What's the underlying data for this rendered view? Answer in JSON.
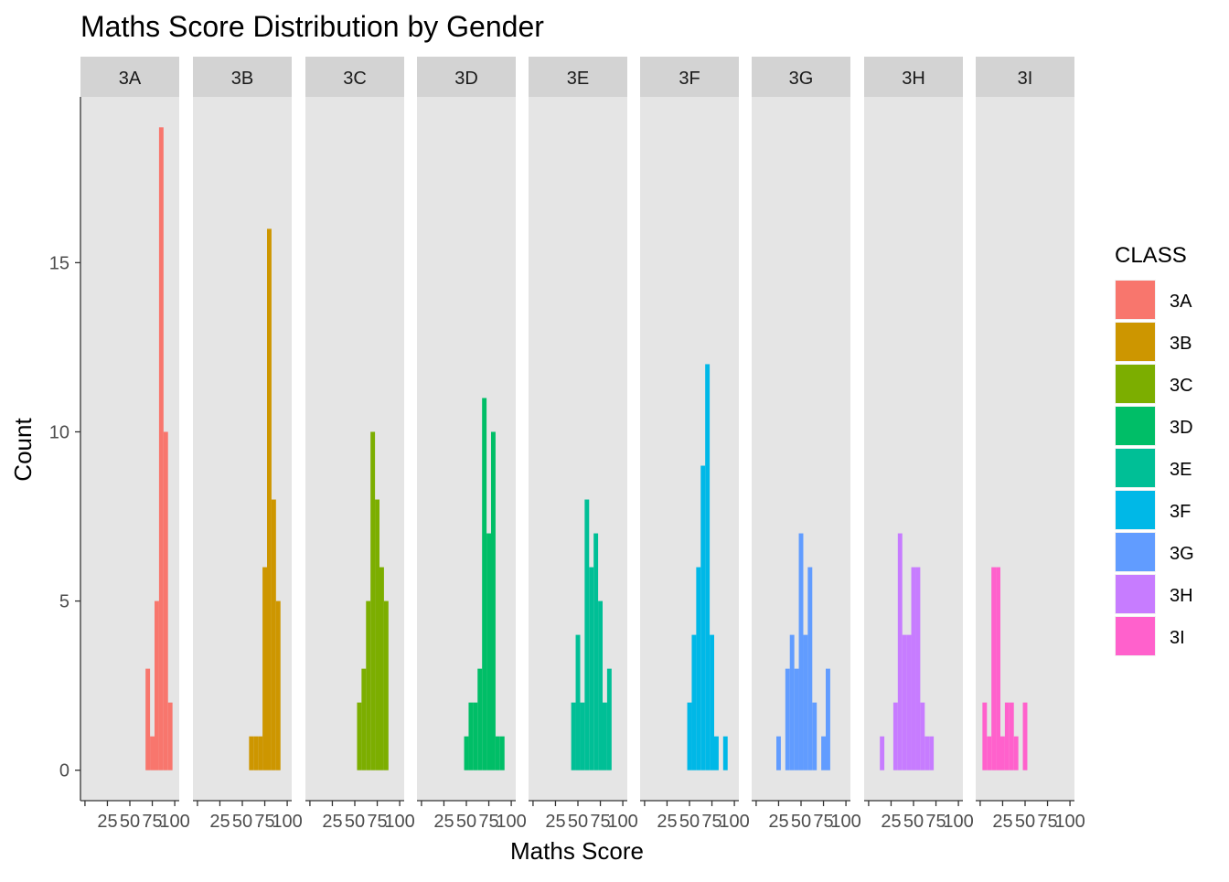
{
  "chart_data": {
    "type": "bar",
    "title": "Maths Score Distribution by Gender",
    "xlabel": "Maths Score",
    "ylabel": "Count",
    "xlim": [
      0,
      100
    ],
    "ylim": [
      -0.9,
      19.9
    ],
    "x_ticks": [
      0,
      25,
      50,
      75,
      100
    ],
    "x_tick_labels": [
      "",
      "25",
      "50",
      "75",
      "100"
    ],
    "y_ticks": [
      0,
      5,
      10,
      15
    ],
    "y_tick_labels": [
      "0",
      "5",
      "10",
      "15"
    ],
    "bin_width": 5,
    "grid": false,
    "legend": {
      "title": "CLASS",
      "placement": "right"
    },
    "panels": [
      {
        "name": "3A",
        "color": "#F8766D",
        "bins": [
          [
            70,
            3
          ],
          [
            75,
            1
          ],
          [
            80,
            5
          ],
          [
            85,
            19
          ],
          [
            90,
            10
          ],
          [
            95,
            2
          ]
        ]
      },
      {
        "name": "3B",
        "color": "#CD9600",
        "bins": [
          [
            60,
            1
          ],
          [
            65,
            1
          ],
          [
            70,
            1
          ],
          [
            75,
            6
          ],
          [
            80,
            16
          ],
          [
            85,
            8
          ],
          [
            90,
            5
          ]
        ]
      },
      {
        "name": "3C",
        "color": "#7CAE00",
        "bins": [
          [
            55,
            2
          ],
          [
            60,
            3
          ],
          [
            65,
            5
          ],
          [
            70,
            10
          ],
          [
            75,
            8
          ],
          [
            80,
            6
          ],
          [
            85,
            5
          ]
        ]
      },
      {
        "name": "3D",
        "color": "#00BE67",
        "bins": [
          [
            50,
            1
          ],
          [
            55,
            2
          ],
          [
            60,
            2
          ],
          [
            65,
            3
          ],
          [
            70,
            11
          ],
          [
            75,
            7
          ],
          [
            80,
            10
          ],
          [
            85,
            1
          ],
          [
            90,
            1
          ]
        ]
      },
      {
        "name": "3E",
        "color": "#00BF96",
        "bins": [
          [
            45,
            2
          ],
          [
            50,
            4
          ],
          [
            55,
            2
          ],
          [
            60,
            8
          ],
          [
            65,
            6
          ],
          [
            70,
            7
          ],
          [
            75,
            5
          ],
          [
            80,
            2
          ],
          [
            85,
            3
          ]
        ]
      },
      {
        "name": "3F",
        "color": "#00B8E7",
        "bins": [
          [
            50,
            2
          ],
          [
            55,
            4
          ],
          [
            60,
            6
          ],
          [
            65,
            9
          ],
          [
            70,
            12
          ],
          [
            75,
            4
          ],
          [
            80,
            1
          ],
          [
            90,
            1
          ]
        ]
      },
      {
        "name": "3G",
        "color": "#619CFF",
        "bins": [
          [
            25,
            1
          ],
          [
            35,
            3
          ],
          [
            40,
            4
          ],
          [
            45,
            3
          ],
          [
            50,
            7
          ],
          [
            55,
            4
          ],
          [
            60,
            6
          ],
          [
            65,
            2
          ],
          [
            75,
            1
          ],
          [
            80,
            3
          ]
        ]
      },
      {
        "name": "3H",
        "color": "#C77CFF",
        "bins": [
          [
            15,
            1
          ],
          [
            30,
            2
          ],
          [
            35,
            7
          ],
          [
            40,
            4
          ],
          [
            45,
            4
          ],
          [
            50,
            6
          ],
          [
            55,
            6
          ],
          [
            60,
            2
          ],
          [
            65,
            1
          ],
          [
            70,
            1
          ]
        ]
      },
      {
        "name": "3I",
        "color": "#FF61CC",
        "bins": [
          [
            5,
            2
          ],
          [
            10,
            1
          ],
          [
            15,
            6
          ],
          [
            20,
            6
          ],
          [
            25,
            1
          ],
          [
            30,
            2
          ],
          [
            35,
            2
          ],
          [
            40,
            1
          ],
          [
            50,
            2
          ]
        ]
      }
    ]
  }
}
